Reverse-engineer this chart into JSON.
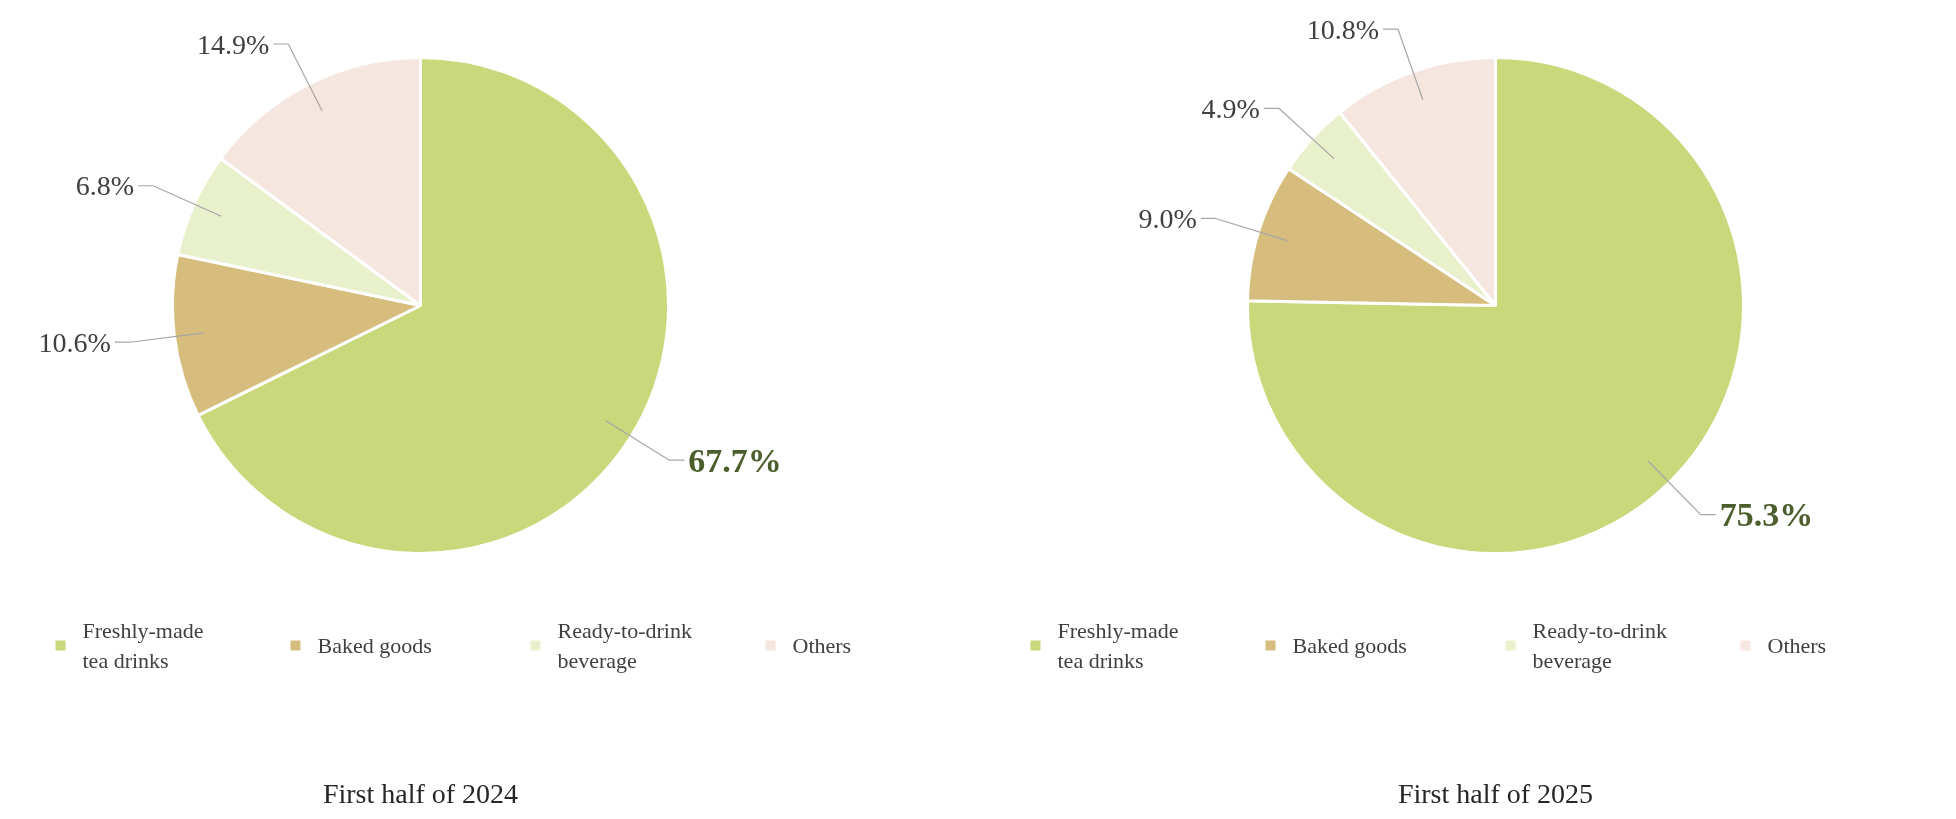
{
  "chart_data": [
    {
      "type": "pie",
      "title": "First half of 2024",
      "categories": [
        "Freshly-made tea drinks",
        "Baked goods",
        "Ready-to-drink beverage",
        "Others"
      ],
      "values": [
        67.7,
        10.6,
        6.8,
        14.9
      ],
      "value_labels": [
        "67.7%",
        "10.6%",
        "6.8%",
        "14.9%"
      ],
      "colors": [
        "#c8d87a",
        "#d6bd7e",
        "#e8f0cc",
        "#f5e6e0"
      ],
      "legend": "bottom"
    },
    {
      "type": "pie",
      "title": "First half of 2025",
      "categories": [
        "Freshly-made tea drinks",
        "Baked goods",
        "Ready-to-drink beverage",
        "Others"
      ],
      "values": [
        75.3,
        9.0,
        4.9,
        10.8
      ],
      "value_labels": [
        "75.3%",
        "9.0%",
        "4.9%",
        "10.8%"
      ],
      "colors": [
        "#c8d87a",
        "#d6bd7e",
        "#e8f0cc",
        "#f5e6e0"
      ],
      "legend": "bottom"
    }
  ]
}
